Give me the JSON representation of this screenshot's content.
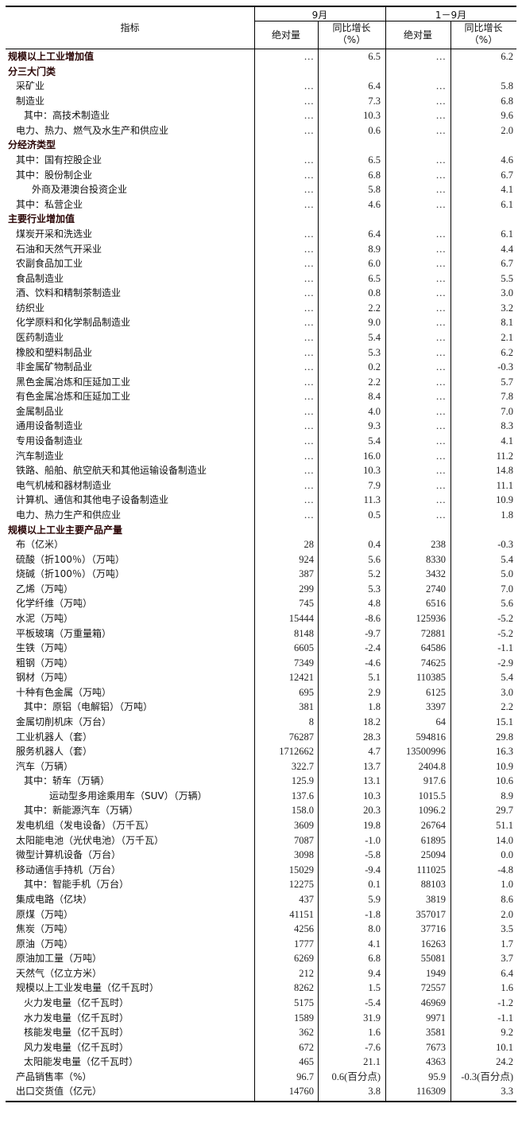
{
  "header": {
    "indicator": "指标",
    "period1": "9月",
    "period2": "1－9月",
    "abs": "绝对量",
    "yoy_line1": "同比增长",
    "yoy_line2": "（%）"
  },
  "rows": [
    {
      "label": "规模以上工业增加值",
      "level": 0,
      "bold": true,
      "v": [
        "…",
        "6.5",
        "…",
        "6.2"
      ]
    },
    {
      "label": "分三大门类",
      "level": 0,
      "bold": true,
      "v": [
        "",
        "",
        "",
        ""
      ]
    },
    {
      "label": "采矿业",
      "level": 1,
      "v": [
        "…",
        "6.4",
        "…",
        "5.8"
      ]
    },
    {
      "label": "制造业",
      "level": 1,
      "v": [
        "…",
        "7.3",
        "…",
        "6.8"
      ]
    },
    {
      "label": "其中：高技术制造业",
      "level": 2,
      "v": [
        "…",
        "10.3",
        "…",
        "9.6"
      ]
    },
    {
      "label": "电力、热力、燃气及水生产和供应业",
      "level": 1,
      "v": [
        "…",
        "0.6",
        "…",
        "2.0"
      ]
    },
    {
      "label": "分经济类型",
      "level": 0,
      "bold": true,
      "v": [
        "",
        "",
        "",
        ""
      ]
    },
    {
      "label": "其中：国有控股企业",
      "level": 1,
      "v": [
        "…",
        "6.5",
        "…",
        "4.6"
      ]
    },
    {
      "label": "其中：股份制企业",
      "level": 1,
      "v": [
        "…",
        "6.8",
        "…",
        "6.7"
      ]
    },
    {
      "label": "外商及港澳台投资企业",
      "level": 3,
      "v": [
        "…",
        "5.8",
        "…",
        "4.1"
      ]
    },
    {
      "label": "其中：私营企业",
      "level": 1,
      "v": [
        "…",
        "4.6",
        "…",
        "6.1"
      ]
    },
    {
      "label": "主要行业增加值",
      "level": 0,
      "bold": true,
      "v": [
        "",
        "",
        "",
        ""
      ]
    },
    {
      "label": "煤炭开采和洗选业",
      "level": 1,
      "v": [
        "…",
        "6.4",
        "…",
        "6.1"
      ]
    },
    {
      "label": "石油和天然气开采业",
      "level": 1,
      "v": [
        "…",
        "8.9",
        "…",
        "4.4"
      ]
    },
    {
      "label": "农副食品加工业",
      "level": 1,
      "v": [
        "…",
        "6.0",
        "…",
        "6.7"
      ]
    },
    {
      "label": "食品制造业",
      "level": 1,
      "v": [
        "…",
        "6.5",
        "…",
        "5.5"
      ]
    },
    {
      "label": "酒、饮料和精制茶制造业",
      "level": 1,
      "v": [
        "…",
        "0.8",
        "…",
        "3.0"
      ]
    },
    {
      "label": "纺织业",
      "level": 1,
      "v": [
        "…",
        "2.2",
        "…",
        "3.2"
      ]
    },
    {
      "label": "化学原料和化学制品制造业",
      "level": 1,
      "v": [
        "…",
        "9.0",
        "…",
        "8.1"
      ]
    },
    {
      "label": "医药制造业",
      "level": 1,
      "v": [
        "…",
        "5.4",
        "…",
        "2.1"
      ]
    },
    {
      "label": "橡胶和塑料制品业",
      "level": 1,
      "v": [
        "…",
        "5.3",
        "…",
        "6.2"
      ]
    },
    {
      "label": "非金属矿物制品业",
      "level": 1,
      "v": [
        "…",
        "0.2",
        "…",
        "-0.3"
      ]
    },
    {
      "label": "黑色金属冶炼和压延加工业",
      "level": 1,
      "v": [
        "…",
        "2.2",
        "…",
        "5.7"
      ]
    },
    {
      "label": "有色金属冶炼和压延加工业",
      "level": 1,
      "v": [
        "…",
        "8.4",
        "…",
        "7.8"
      ]
    },
    {
      "label": "金属制品业",
      "level": 1,
      "v": [
        "…",
        "4.0",
        "…",
        "7.0"
      ]
    },
    {
      "label": "通用设备制造业",
      "level": 1,
      "v": [
        "…",
        "9.3",
        "…",
        "8.3"
      ]
    },
    {
      "label": "专用设备制造业",
      "level": 1,
      "v": [
        "…",
        "5.4",
        "…",
        "4.1"
      ]
    },
    {
      "label": "汽车制造业",
      "level": 1,
      "v": [
        "…",
        "16.0",
        "…",
        "11.2"
      ]
    },
    {
      "label": "铁路、船舶、航空航天和其他运输设备制造业",
      "level": 1,
      "v": [
        "…",
        "10.3",
        "…",
        "14.8"
      ]
    },
    {
      "label": "电气机械和器材制造业",
      "level": 1,
      "v": [
        "…",
        "7.9",
        "…",
        "11.1"
      ]
    },
    {
      "label": "计算机、通信和其他电子设备制造业",
      "level": 1,
      "v": [
        "…",
        "11.3",
        "…",
        "10.9"
      ]
    },
    {
      "label": "电力、热力生产和供应业",
      "level": 1,
      "v": [
        "…",
        "0.5",
        "…",
        "1.8"
      ]
    },
    {
      "label": "规模以上工业主要产品产量",
      "level": 0,
      "bold": true,
      "v": [
        "",
        "",
        "",
        ""
      ]
    },
    {
      "label": "布（亿米）",
      "level": 1,
      "v": [
        "28",
        "0.4",
        "238",
        "-0.3"
      ]
    },
    {
      "label": "硫酸（折100％）（万吨）",
      "level": 1,
      "v": [
        "924",
        "5.6",
        "8330",
        "5.4"
      ]
    },
    {
      "label": "烧碱（折100％）（万吨）",
      "level": 1,
      "v": [
        "387",
        "5.2",
        "3432",
        "5.0"
      ]
    },
    {
      "label": "乙烯（万吨）",
      "level": 1,
      "v": [
        "299",
        "5.3",
        "2740",
        "7.0"
      ]
    },
    {
      "label": "化学纤维（万吨）",
      "level": 1,
      "v": [
        "745",
        "4.8",
        "6516",
        "5.6"
      ]
    },
    {
      "label": "水泥（万吨）",
      "level": 1,
      "v": [
        "15444",
        "-8.6",
        "125936",
        "-5.2"
      ]
    },
    {
      "label": "平板玻璃（万重量箱）",
      "level": 1,
      "v": [
        "8148",
        "-9.7",
        "72881",
        "-5.2"
      ]
    },
    {
      "label": "生铁（万吨）",
      "level": 1,
      "v": [
        "6605",
        "-2.4",
        "64586",
        "-1.1"
      ]
    },
    {
      "label": "粗钢（万吨）",
      "level": 1,
      "v": [
        "7349",
        "-4.6",
        "74625",
        "-2.9"
      ]
    },
    {
      "label": "钢材（万吨）",
      "level": 1,
      "v": [
        "12421",
        "5.1",
        "110385",
        "5.4"
      ]
    },
    {
      "label": "十种有色金属（万吨）",
      "level": 1,
      "v": [
        "695",
        "2.9",
        "6125",
        "3.0"
      ]
    },
    {
      "label": "其中：原铝（电解铝）（万吨）",
      "level": 2,
      "v": [
        "381",
        "1.8",
        "3397",
        "2.2"
      ]
    },
    {
      "label": "金属切削机床（万台）",
      "level": 1,
      "v": [
        "8",
        "18.2",
        "64",
        "15.1"
      ]
    },
    {
      "label": "工业机器人（套）",
      "level": 1,
      "v": [
        "76287",
        "28.3",
        "594816",
        "29.8"
      ]
    },
    {
      "label": "服务机器人（套）",
      "level": 1,
      "v": [
        "1712662",
        "4.7",
        "13500996",
        "16.3"
      ]
    },
    {
      "label": "汽车（万辆）",
      "level": 1,
      "v": [
        "322.7",
        "13.7",
        "2404.8",
        "10.9"
      ]
    },
    {
      "label": "其中：轿车（万辆）",
      "level": 2,
      "v": [
        "125.9",
        "13.1",
        "917.6",
        "10.6"
      ]
    },
    {
      "label": "运动型多用途乘用车（SUV）（万辆）",
      "level": 4,
      "v": [
        "137.6",
        "10.3",
        "1015.5",
        "8.9"
      ]
    },
    {
      "label": "其中：新能源汽车（万辆）",
      "level": 2,
      "v": [
        "158.0",
        "20.3",
        "1096.2",
        "29.7"
      ]
    },
    {
      "label": "发电机组（发电设备）（万千瓦）",
      "level": 1,
      "v": [
        "3609",
        "19.8",
        "26764",
        "51.1"
      ]
    },
    {
      "label": "太阳能电池（光伏电池）（万千瓦）",
      "level": 1,
      "v": [
        "7087",
        "-1.0",
        "61895",
        "14.0"
      ]
    },
    {
      "label": "微型计算机设备（万台）",
      "level": 1,
      "v": [
        "3098",
        "-5.8",
        "25094",
        "0.0"
      ]
    },
    {
      "label": "移动通信手持机（万台）",
      "level": 1,
      "v": [
        "15029",
        "-9.4",
        "111025",
        "-4.8"
      ]
    },
    {
      "label": "其中：智能手机（万台）",
      "level": 2,
      "v": [
        "12275",
        "0.1",
        "88103",
        "1.0"
      ]
    },
    {
      "label": "集成电路（亿块）",
      "level": 1,
      "v": [
        "437",
        "5.9",
        "3819",
        "8.6"
      ]
    },
    {
      "label": "原煤（万吨）",
      "level": 1,
      "v": [
        "41151",
        "-1.8",
        "357017",
        "2.0"
      ]
    },
    {
      "label": "焦炭（万吨）",
      "level": 1,
      "v": [
        "4256",
        "8.0",
        "37716",
        "3.5"
      ]
    },
    {
      "label": "原油（万吨）",
      "level": 1,
      "v": [
        "1777",
        "4.1",
        "16263",
        "1.7"
      ]
    },
    {
      "label": "原油加工量（万吨）",
      "level": 1,
      "v": [
        "6269",
        "6.8",
        "55081",
        "3.7"
      ]
    },
    {
      "label": "天然气（亿立方米）",
      "level": 1,
      "v": [
        "212",
        "9.4",
        "1949",
        "6.4"
      ]
    },
    {
      "label": "规模以上工业发电量（亿千瓦时）",
      "level": 1,
      "v": [
        "8262",
        "1.5",
        "72557",
        "1.6"
      ]
    },
    {
      "label": "火力发电量（亿千瓦时）",
      "level": 2,
      "v": [
        "5175",
        "-5.4",
        "46969",
        "-1.2"
      ]
    },
    {
      "label": "水力发电量（亿千瓦时）",
      "level": 2,
      "v": [
        "1589",
        "31.9",
        "9971",
        "-1.1"
      ]
    },
    {
      "label": "核能发电量（亿千瓦时）",
      "level": 2,
      "v": [
        "362",
        "1.6",
        "3581",
        "9.2"
      ]
    },
    {
      "label": "风力发电量（亿千瓦时）",
      "level": 2,
      "v": [
        "672",
        "-7.6",
        "7673",
        "10.1"
      ]
    },
    {
      "label": "太阳能发电量（亿千瓦时）",
      "level": 2,
      "v": [
        "465",
        "21.1",
        "4363",
        "24.2"
      ]
    },
    {
      "label": "产品销售率（%）",
      "level": 1,
      "v": [
        "96.7",
        "0.6(百分点)",
        "95.9",
        "-0.3(百分点)"
      ]
    },
    {
      "label": "出口交货值（亿元）",
      "level": 1,
      "v": [
        "14760",
        "3.8",
        "116309",
        "3.3"
      ]
    }
  ]
}
